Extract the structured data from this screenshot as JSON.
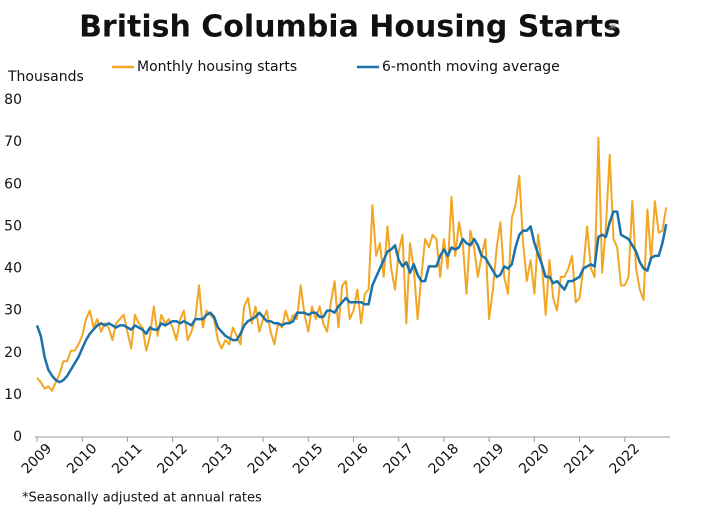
{
  "chart_data": {
    "type": "line",
    "title": "British Columbia Housing Starts",
    "title_mark": "*",
    "y_label": "Thousands",
    "footnote": "*Seasonally adjusted at annual rates",
    "xlim": [
      2009,
      2023
    ],
    "xticks": [
      2009,
      2010,
      2011,
      2012,
      2013,
      2014,
      2015,
      2016,
      2017,
      2018,
      2019,
      2020,
      2021,
      2022
    ],
    "ylim": [
      0,
      80
    ],
    "yticks": [
      0,
      10,
      20,
      30,
      40,
      50,
      60,
      70,
      80
    ],
    "grid": false,
    "x": [
      2009,
      2009.083,
      2009.167,
      2009.25,
      2009.333,
      2009.417,
      2009.5,
      2009.583,
      2009.667,
      2009.75,
      2009.833,
      2009.917,
      2010,
      2010.083,
      2010.167,
      2010.25,
      2010.333,
      2010.417,
      2010.5,
      2010.583,
      2010.667,
      2010.75,
      2010.833,
      2010.917,
      2011,
      2011.083,
      2011.167,
      2011.25,
      2011.333,
      2011.417,
      2011.5,
      2011.583,
      2011.667,
      2011.75,
      2011.833,
      2011.917,
      2012,
      2012.083,
      2012.167,
      2012.25,
      2012.333,
      2012.417,
      2012.5,
      2012.583,
      2012.667,
      2012.75,
      2012.833,
      2012.917,
      2013,
      2013.083,
      2013.167,
      2013.25,
      2013.333,
      2013.417,
      2013.5,
      2013.583,
      2013.667,
      2013.75,
      2013.833,
      2013.917,
      2014,
      2014.083,
      2014.167,
      2014.25,
      2014.333,
      2014.417,
      2014.5,
      2014.583,
      2014.667,
      2014.75,
      2014.833,
      2014.917,
      2015,
      2015.083,
      2015.167,
      2015.25,
      2015.333,
      2015.417,
      2015.5,
      2015.583,
      2015.667,
      2015.75,
      2015.833,
      2015.917,
      2016,
      2016.083,
      2016.167,
      2016.25,
      2016.333,
      2016.417,
      2016.5,
      2016.583,
      2016.667,
      2016.75,
      2016.833,
      2016.917,
      2017,
      2017.083,
      2017.167,
      2017.25,
      2017.333,
      2017.417,
      2017.5,
      2017.583,
      2017.667,
      2017.75,
      2017.833,
      2017.917,
      2018,
      2018.083,
      2018.167,
      2018.25,
      2018.333,
      2018.417,
      2018.5,
      2018.583,
      2018.667,
      2018.75,
      2018.833,
      2018.917,
      2019,
      2019.083,
      2019.167,
      2019.25,
      2019.333,
      2019.417,
      2019.5,
      2019.583,
      2019.667,
      2019.75,
      2019.833,
      2019.917,
      2020,
      2020.083,
      2020.167,
      2020.25,
      2020.333,
      2020.417,
      2020.5,
      2020.583,
      2020.667,
      2020.75,
      2020.833,
      2020.917,
      2021,
      2021.083,
      2021.167,
      2021.25,
      2021.333,
      2021.417,
      2021.5,
      2021.583,
      2021.667,
      2021.75,
      2021.833,
      2021.917,
      2022,
      2022.083,
      2022.167,
      2022.25,
      2022.333,
      2022.417,
      2022.5,
      2022.583,
      2022.667,
      2022.75,
      2022.833,
      2022.917
    ],
    "series": [
      {
        "name": "Monthly housing starts",
        "color": "#f2a623",
        "values": [
          14,
          13,
          11.5,
          12,
          11,
          13,
          15,
          18,
          18,
          20.5,
          20.5,
          22,
          24,
          28,
          30,
          26,
          28,
          25,
          27,
          26,
          23,
          27,
          28,
          29,
          25,
          21,
          29,
          27,
          26,
          20.5,
          24,
          31,
          24,
          29,
          27,
          28,
          26,
          23,
          28,
          30,
          23,
          25,
          28,
          36,
          26,
          30,
          29,
          28,
          23,
          21,
          23,
          22,
          26,
          24,
          22,
          31,
          33,
          27,
          31,
          25,
          28,
          30,
          25,
          22,
          27,
          26,
          30,
          27,
          29,
          28,
          36,
          29,
          25,
          31,
          28,
          31,
          27,
          25,
          32,
          37,
          26,
          36,
          37,
          28,
          30,
          35,
          27,
          34,
          35,
          55,
          43,
          46,
          38,
          50,
          40,
          35,
          44,
          48,
          27,
          46,
          40,
          28,
          38,
          47,
          45,
          48,
          47,
          38,
          47,
          40,
          57,
          43,
          51,
          46,
          34,
          49,
          45,
          38,
          43,
          47,
          28,
          35,
          45,
          51,
          38,
          34,
          52,
          55,
          62,
          46,
          37,
          42,
          34,
          48,
          41,
          29,
          42,
          33,
          30,
          38,
          38,
          40,
          43,
          32,
          33,
          40,
          50,
          40,
          38,
          71,
          39,
          50,
          67,
          47,
          45,
          36,
          36,
          38,
          56,
          40,
          35,
          32.5,
          54,
          42,
          56,
          48.5,
          49,
          54.5
        ]
      },
      {
        "name": "6-month moving average",
        "color": "#1a72a8",
        "values": [
          26.5,
          24,
          19,
          16,
          14.5,
          13.5,
          13,
          13.5,
          14.5,
          16,
          17.5,
          19,
          21,
          23,
          24.5,
          25.5,
          26.5,
          27,
          26.5,
          27,
          26.5,
          26,
          26.5,
          26.5,
          26,
          25.5,
          26.5,
          26,
          25.5,
          24.5,
          26,
          25.5,
          25.5,
          27,
          26.5,
          27,
          27.5,
          27.5,
          27,
          27.5,
          27,
          26.5,
          28,
          28,
          28,
          29,
          29.5,
          28.5,
          26,
          25,
          24,
          23.5,
          23,
          23,
          24.5,
          26.5,
          27.5,
          28,
          28.5,
          29.5,
          28.5,
          27.5,
          27.5,
          27,
          27,
          26.5,
          27,
          27,
          27.5,
          29.5,
          29.5,
          29.5,
          29,
          29.5,
          29.5,
          28.5,
          28.5,
          30,
          30,
          29.5,
          31,
          32,
          33,
          32,
          32,
          32,
          32,
          31.5,
          31.5,
          36,
          38,
          40,
          42,
          44,
          44.5,
          45.5,
          42,
          40.5,
          41.5,
          39,
          41,
          38.5,
          37,
          37,
          40.5,
          40.5,
          40.5,
          43,
          44.5,
          43,
          45,
          44.5,
          45,
          47,
          46,
          45.5,
          47,
          45.5,
          43,
          42.5,
          41,
          39.5,
          38,
          38.5,
          40.5,
          40,
          41,
          45,
          48,
          49,
          49,
          50,
          46,
          43.5,
          41,
          38,
          38,
          36.5,
          37,
          36,
          35,
          37,
          37,
          37.5,
          38,
          40,
          40.5,
          41,
          40.5,
          47.5,
          48,
          47.5,
          51,
          53.5,
          53.5,
          48,
          47.5,
          47,
          45.5,
          44,
          41.5,
          40,
          39.5,
          42.5,
          43,
          43,
          46,
          50.5
        ]
      }
    ]
  }
}
